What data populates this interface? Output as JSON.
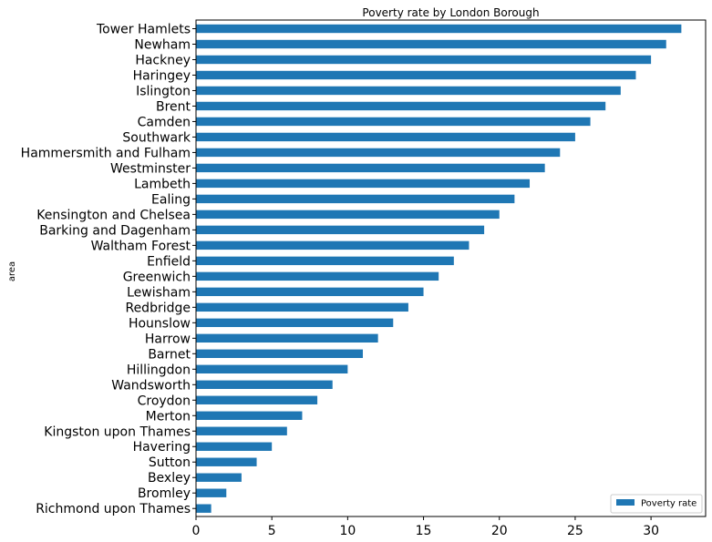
{
  "chart_data": {
    "type": "bar",
    "orientation": "horizontal",
    "title": "Poverty rate by London Borough",
    "xlabel": "",
    "ylabel": "area",
    "xlim": [
      0,
      33.6
    ],
    "xticks": [
      0,
      5,
      10,
      15,
      20,
      25,
      30
    ],
    "grid": false,
    "legend_position": "bottom-right",
    "color": "#1f77b4",
    "categories": [
      "Tower Hamlets",
      "Newham",
      "Hackney",
      "Haringey",
      "Islington",
      "Brent",
      "Camden",
      "Southwark",
      "Hammersmith and Fulham",
      "Westminster",
      "Lambeth",
      "Ealing",
      "Kensington and Chelsea",
      "Barking and Dagenham",
      "Waltham Forest",
      "Enfield",
      "Greenwich",
      "Lewisham",
      "Redbridge",
      "Hounslow",
      "Harrow",
      "Barnet",
      "Hillingdon",
      "Wandsworth",
      "Croydon",
      "Merton",
      "Kingston upon Thames",
      "Havering",
      "Sutton",
      "Bexley",
      "Bromley",
      "Richmond upon Thames"
    ],
    "series": [
      {
        "name": "Poverty rate",
        "values": [
          32,
          31,
          30,
          29,
          28,
          27,
          26,
          25,
          24,
          23,
          22,
          21,
          20,
          19,
          18,
          17,
          16,
          15,
          14,
          13,
          12,
          11,
          10,
          9,
          8,
          7,
          6,
          5,
          4,
          3,
          2,
          1
        ]
      }
    ]
  }
}
